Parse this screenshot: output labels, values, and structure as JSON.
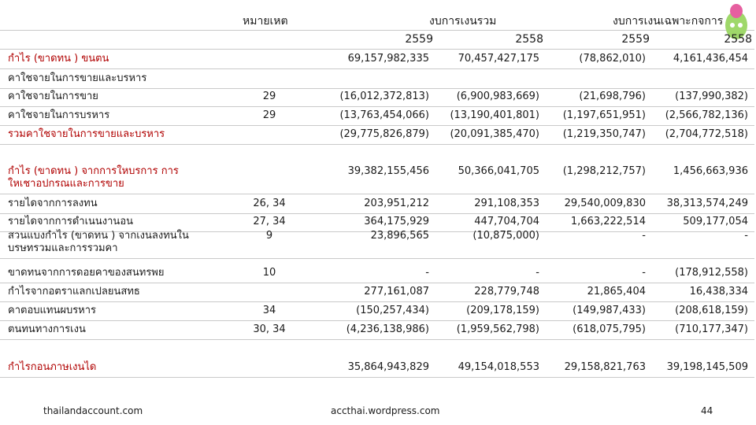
{
  "header": {
    "note": "หมายเหต",
    "consolidated": "งบการเงนรวม",
    "separate": "งบการเงนเฉพาะกจการ",
    "years": [
      "2559",
      "2558",
      "2559",
      "2558"
    ]
  },
  "table": {
    "rows": [
      {
        "label": "กำไร (ขาดทน ) ขนตน",
        "red": true,
        "values": [
          "69,157,982,335",
          "70,457,427,175",
          "(78,862,010)",
          "4,161,436,454"
        ]
      },
      {
        "label": "คาใชจายในการขายและบรหาร"
      },
      {
        "label": "คาใชจายในการขาย",
        "note": "29",
        "values": [
          "(16,012,372,813)",
          "(6,900,983,669)",
          "(21,698,796)",
          "(137,990,382)"
        ]
      },
      {
        "label": "คาใชจายในการบรหาร",
        "note": "29",
        "values": [
          "(13,763,454,066)",
          "(13,190,401,801)",
          "(1,197,651,951)",
          "(2,566,782,136)"
        ]
      },
      {
        "label": "รวมคาใชจายในการขายและบรหาร",
        "red": true,
        "values": [
          "(29,775,826,879)",
          "(20,091,385,470)",
          "(1,219,350,747)",
          "(2,704,772,518)"
        ]
      },
      {
        "label": "กำไร (ขาดทน ) จากการใหบรการ การใหเชาอปกรณและการขาย",
        "red": true,
        "values": [
          "39,382,155,456",
          "50,366,041,705",
          "(1,298,212,757)",
          "1,456,663,936"
        ]
      },
      {
        "label": "รายไดจากการลงทน",
        "note": "26, 34",
        "values": [
          "203,951,212",
          "291,108,353",
          "29,540,009,830",
          "38,313,574,249"
        ]
      },
      {
        "label": "รายไดจากการดำเนนงานอน",
        "note": "27, 34",
        "values": [
          "364,175,929",
          "447,704,704",
          "1,663,222,514",
          "509,177,054"
        ]
      },
      {
        "label": "สวนแบงกำไร (ขาดทน ) จากเงนลงทนในบรษทรวมและการรวมคา",
        "note": "9",
        "values": [
          "23,896,565",
          "(10,875,000)",
          "-",
          "-"
        ]
      },
      {
        "label": "ขาดทนจากการดอยคาของสนทรพย",
        "note": "10",
        "values": [
          "-",
          "-",
          "-",
          "(178,912,558)"
        ]
      },
      {
        "label": "กำไรจากอตราแลกเปลยนสทธ",
        "values": [
          "277,161,087",
          "228,779,748",
          "21,865,404",
          "16,438,334"
        ]
      },
      {
        "label": "คาตอบแทนผบรหาร",
        "note": "34",
        "values": [
          "(150,257,434)",
          "(209,178,159)",
          "(149,987,433)",
          "(208,618,159)"
        ]
      },
      {
        "label": "ตนทนทางการเงน",
        "note": "30, 34",
        "values": [
          "(4,236,138,986)",
          "(1,959,562,798)",
          "(618,075,795)",
          "(710,177,347)"
        ]
      },
      {
        "label": "กำไรกอนภาษเงนได",
        "red": true,
        "values": [
          "35,864,943,829",
          "49,154,018,553",
          "29,158,821,763",
          "39,198,145,509"
        ]
      }
    ]
  },
  "footer": {
    "left": "thailandaccount.com",
    "center": "accthai.wordpress.com",
    "page": "44"
  }
}
